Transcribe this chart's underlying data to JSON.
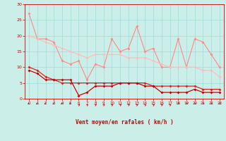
{
  "xlabel": "Vent moyen/en rafales ( km/h )",
  "bg_color": "#cceee8",
  "grid_color": "#99dddd",
  "xmin": 0,
  "xmax": 23,
  "ymin": 0,
  "ymax": 30,
  "yticks": [
    0,
    5,
    10,
    15,
    20,
    25,
    30
  ],
  "xticks": [
    0,
    1,
    2,
    3,
    4,
    5,
    6,
    7,
    8,
    9,
    10,
    11,
    12,
    13,
    14,
    15,
    16,
    17,
    18,
    19,
    20,
    21,
    22,
    23
  ],
  "line1_color": "#ff8888",
  "line2_color": "#ffbbbb",
  "line3_color": "#cc0000",
  "line4_color": "#dd2222",
  "line1": [
    27,
    19,
    19,
    18,
    12,
    11,
    12,
    6,
    11,
    10,
    19,
    15,
    16,
    23,
    15,
    16,
    10,
    10,
    19,
    10,
    19,
    18,
    14,
    10
  ],
  "line2": [
    20,
    19,
    18,
    17,
    16,
    15,
    14,
    13,
    14,
    14,
    14,
    14,
    13,
    13,
    13,
    12,
    11,
    10,
    10,
    10,
    10,
    9,
    9,
    7
  ],
  "line3": [
    9,
    8,
    6,
    6,
    6,
    6,
    1,
    2,
    4,
    4,
    4,
    5,
    5,
    5,
    4,
    4,
    2,
    2,
    2,
    2,
    3,
    2,
    2,
    2
  ],
  "line4": [
    10,
    9,
    7,
    6,
    5,
    5,
    5,
    5,
    5,
    5,
    5,
    5,
    5,
    5,
    5,
    4,
    4,
    4,
    4,
    4,
    4,
    3,
    3,
    3
  ],
  "marker": "D",
  "markersize": 2.0,
  "arrow_angles": [
    225,
    225,
    225,
    225,
    225,
    225,
    45,
    45,
    45,
    45,
    45,
    45,
    45,
    45,
    45,
    45,
    45,
    45,
    315,
    315,
    315,
    315,
    315,
    315
  ]
}
